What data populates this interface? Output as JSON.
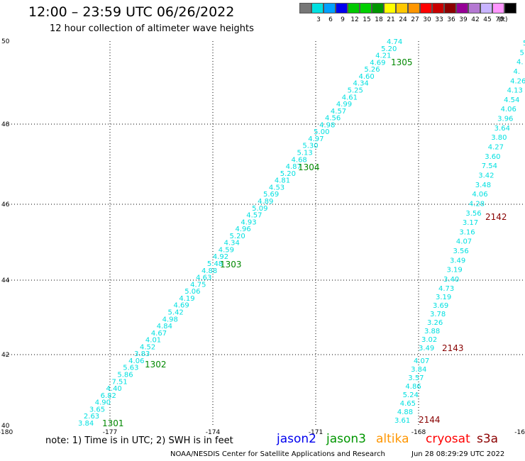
{
  "header": {
    "title": "12:00 – 23:59 UTC 06/26/2022",
    "subtitle": "12 hour collection of altimeter wave heights"
  },
  "color_scale": {
    "unit": "(ft)",
    "swatches": [
      {
        "color": "#777777",
        "label": ""
      },
      {
        "color": "#00e0e0",
        "label": "3"
      },
      {
        "color": "#00a0ff",
        "label": "6"
      },
      {
        "color": "#0000ee",
        "label": "9"
      },
      {
        "color": "#00c800",
        "label": "12"
      },
      {
        "color": "#00d000",
        "label": "15"
      },
      {
        "color": "#009600",
        "label": "18"
      },
      {
        "color": "#ffff00",
        "label": "21"
      },
      {
        "color": "#ffc800",
        "label": "24"
      },
      {
        "color": "#ff9600",
        "label": "27"
      },
      {
        "color": "#ff0000",
        "label": "30"
      },
      {
        "color": "#c80000",
        "label": "33"
      },
      {
        "color": "#8c0000",
        "label": "36"
      },
      {
        "color": "#960096",
        "label": "39"
      },
      {
        "color": "#b478d2",
        "label": "42"
      },
      {
        "color": "#c8b4ff",
        "label": "45"
      },
      {
        "color": "#ff96ff",
        "label": "70"
      },
      {
        "color": "#000000",
        "label": ""
      }
    ]
  },
  "axes": {
    "lon_labels": [
      "-180",
      "-177",
      "-174",
      "-171",
      "-168",
      "-16"
    ],
    "lat_labels": [
      "50",
      "48",
      "46",
      "44",
      "42",
      "40"
    ]
  },
  "passes": [
    {
      "id": "1301",
      "color": "#008800"
    },
    {
      "id": "1302",
      "color": "#008800"
    },
    {
      "id": "1303",
      "color": "#008800"
    },
    {
      "id": "1304",
      "color": "#008800"
    },
    {
      "id": "1305",
      "color": "#008800"
    },
    {
      "id": "2142",
      "color": "#880000"
    },
    {
      "id": "2143",
      "color": "#880000"
    },
    {
      "id": "2144",
      "color": "#880000"
    }
  ],
  "tracks": {
    "jason3_track": [
      "3.84",
      "2.63",
      "3.65",
      "4.90",
      "6.82",
      "4.40",
      "7.51",
      "5.86",
      "5.63",
      "4.06",
      "3.83",
      "4.52",
      "4.01",
      "4.67",
      "4.84",
      "4.98",
      "5.42",
      "4.69",
      "4.19",
      "5.06",
      "4.75",
      "4.63",
      "4.88",
      "5.48",
      "4.92",
      "4.59",
      "4.34",
      "5.20",
      "4.96",
      "4.93",
      "4.57",
      "5.09",
      "4.89",
      "5.69",
      "4.53",
      "4.81",
      "5.20",
      "4.87",
      "4.68",
      "5.13",
      "5.30",
      "4.97",
      "5.00",
      "4.98",
      "4.56",
      "4.57",
      "4.99",
      "4.61",
      "5.25",
      "4.34",
      "4.60",
      "5.26",
      "4.69",
      "4.21",
      "5.20",
      "4.74"
    ],
    "cryosat_track_upper": [
      "5.",
      "5",
      "4.",
      "4.",
      "4.26",
      "4.13",
      "4.54",
      "4.06",
      "3.96",
      "3.64",
      "3.80",
      "4.27",
      "3.60",
      "7.54",
      "3.42",
      "3.48",
      "4.06",
      "4.28",
      "3.56",
      "3.17",
      "3.16",
      "4.07",
      "3.56",
      "3.49",
      "3.19",
      "3.40"
    ],
    "cryosat_track_lower": [
      "4.73",
      "3.19",
      "3.69",
      "3.78",
      "3.26",
      "3.88",
      "3.02",
      "3.49"
    ],
    "cryosat_track_bottom": [
      "4.07",
      "3.84",
      "3.57",
      "4.86",
      "5.24",
      "4.65",
      "4.88",
      "3.61"
    ]
  },
  "footer": {
    "note": "note:  1) Time is in UTC;  2) SWH is in feet",
    "satellites": [
      {
        "name": "jason2",
        "color": "#0000ee"
      },
      {
        "name": "jason3",
        "color": "#009600"
      },
      {
        "name": "altika",
        "color": "#ff9600"
      },
      {
        "name": "cryosat",
        "color": "#ff0000"
      },
      {
        "name": "s3a",
        "color": "#8c0000"
      }
    ],
    "credit": "NOAA/NESDIS Center for Satellite Applications and Research",
    "timestamp": "Jun 28 08:29:29 UTC 2022"
  }
}
